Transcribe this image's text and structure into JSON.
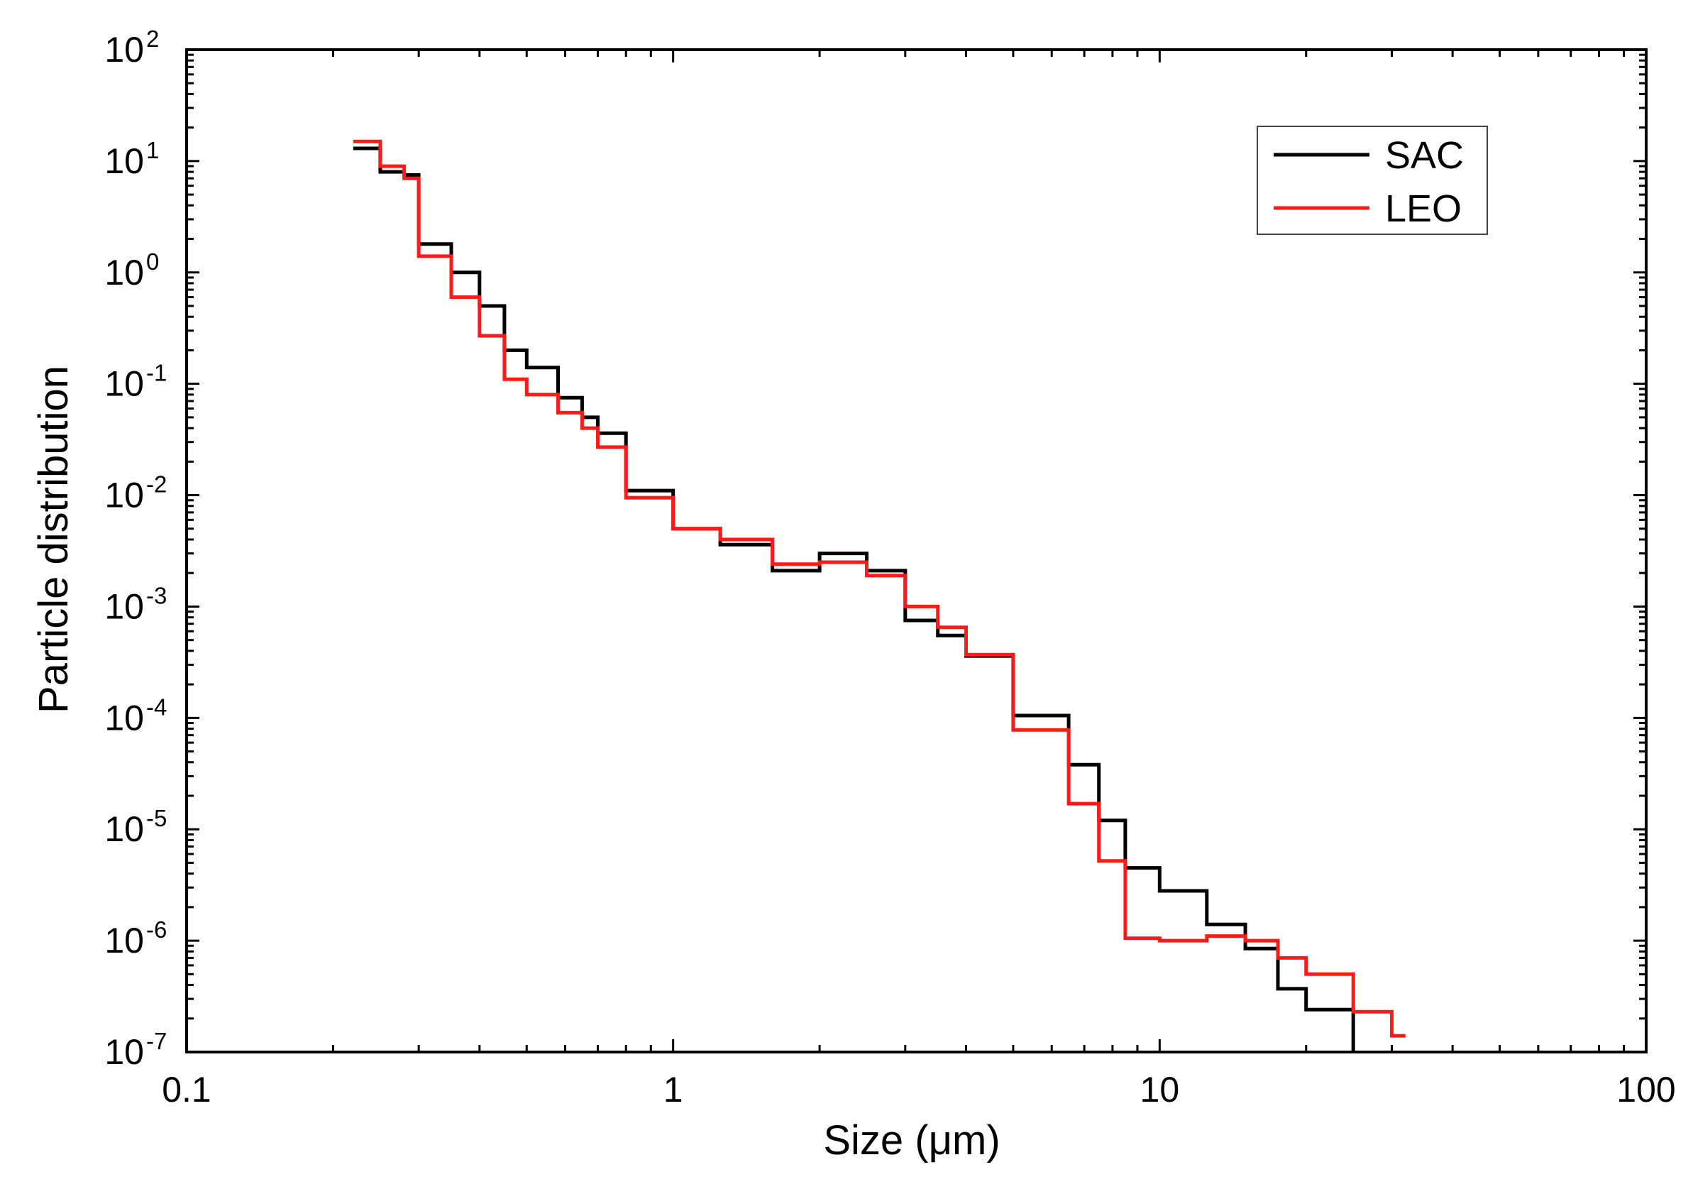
{
  "chart_data": {
    "type": "line",
    "style": "step",
    "title": "",
    "xlabel": "Size (μm)",
    "ylabel": "Particle distribution",
    "xscale": "log",
    "yscale": "log",
    "xlim": [
      0.1,
      100
    ],
    "ylim": [
      1e-07,
      100
    ],
    "x_ticks": [
      {
        "value": 0.1,
        "label": "0.1"
      },
      {
        "value": 1,
        "label": "1"
      },
      {
        "value": 10,
        "label": "10"
      },
      {
        "value": 100,
        "label": "100"
      }
    ],
    "y_ticks": [
      {
        "value": 1e-07,
        "base": "10",
        "exp": "-7"
      },
      {
        "value": 1e-06,
        "base": "10",
        "exp": "-6"
      },
      {
        "value": 1e-05,
        "base": "10",
        "exp": "-5"
      },
      {
        "value": 0.0001,
        "base": "10",
        "exp": "-4"
      },
      {
        "value": 0.001,
        "base": "10",
        "exp": "-3"
      },
      {
        "value": 0.01,
        "base": "10",
        "exp": "-2"
      },
      {
        "value": 0.1,
        "base": "10",
        "exp": "-1"
      },
      {
        "value": 1,
        "base": "10",
        "exp": "0"
      },
      {
        "value": 10,
        "base": "10",
        "exp": "1"
      },
      {
        "value": 100,
        "base": "10",
        "exp": "2"
      }
    ],
    "legend_position": "top-right",
    "series": [
      {
        "name": "SAC",
        "color": "#000000",
        "bin_edges": [
          0.22,
          0.25,
          0.28,
          0.3,
          0.35,
          0.4,
          0.45,
          0.5,
          0.58,
          0.65,
          0.7,
          0.8,
          1.0,
          1.25,
          1.6,
          2.0,
          2.5,
          3.0,
          3.5,
          4.0,
          5.0,
          6.5,
          7.5,
          8.5,
          10.0,
          12.5,
          15.0,
          17.5,
          20.0,
          25.0
        ],
        "values": [
          13,
          8,
          7.5,
          1.8,
          1.0,
          0.5,
          0.2,
          0.14,
          0.075,
          0.05,
          0.036,
          0.011,
          0.005,
          0.0036,
          0.0021,
          0.003,
          0.0021,
          0.00075,
          0.00055,
          0.00036,
          0.000105,
          3.8e-05,
          1.2e-05,
          4.5e-06,
          2.8e-06,
          1.4e-06,
          8.5e-07,
          3.7e-07,
          2.4e-07
        ],
        "end_drop_to": 1e-07
      },
      {
        "name": "LEO",
        "color": "#ff1a1a",
        "bin_edges": [
          0.22,
          0.25,
          0.28,
          0.3,
          0.35,
          0.4,
          0.45,
          0.5,
          0.58,
          0.65,
          0.7,
          0.8,
          1.0,
          1.25,
          1.6,
          2.0,
          2.5,
          3.0,
          3.5,
          4.0,
          5.0,
          6.5,
          7.5,
          8.5,
          10.0,
          12.5,
          15.0,
          17.5,
          20.0,
          25.0,
          30.0,
          32.0
        ],
        "values": [
          15,
          9,
          7,
          1.4,
          0.6,
          0.27,
          0.11,
          0.08,
          0.055,
          0.04,
          0.027,
          0.0095,
          0.005,
          0.004,
          0.0024,
          0.0025,
          0.0019,
          0.001,
          0.00065,
          0.00037,
          7.8e-05,
          1.7e-05,
          5.2e-06,
          1.05e-06,
          1e-06,
          1.1e-06,
          1e-06,
          7e-07,
          5e-07,
          2.3e-07,
          1.4e-07
        ]
      }
    ]
  }
}
